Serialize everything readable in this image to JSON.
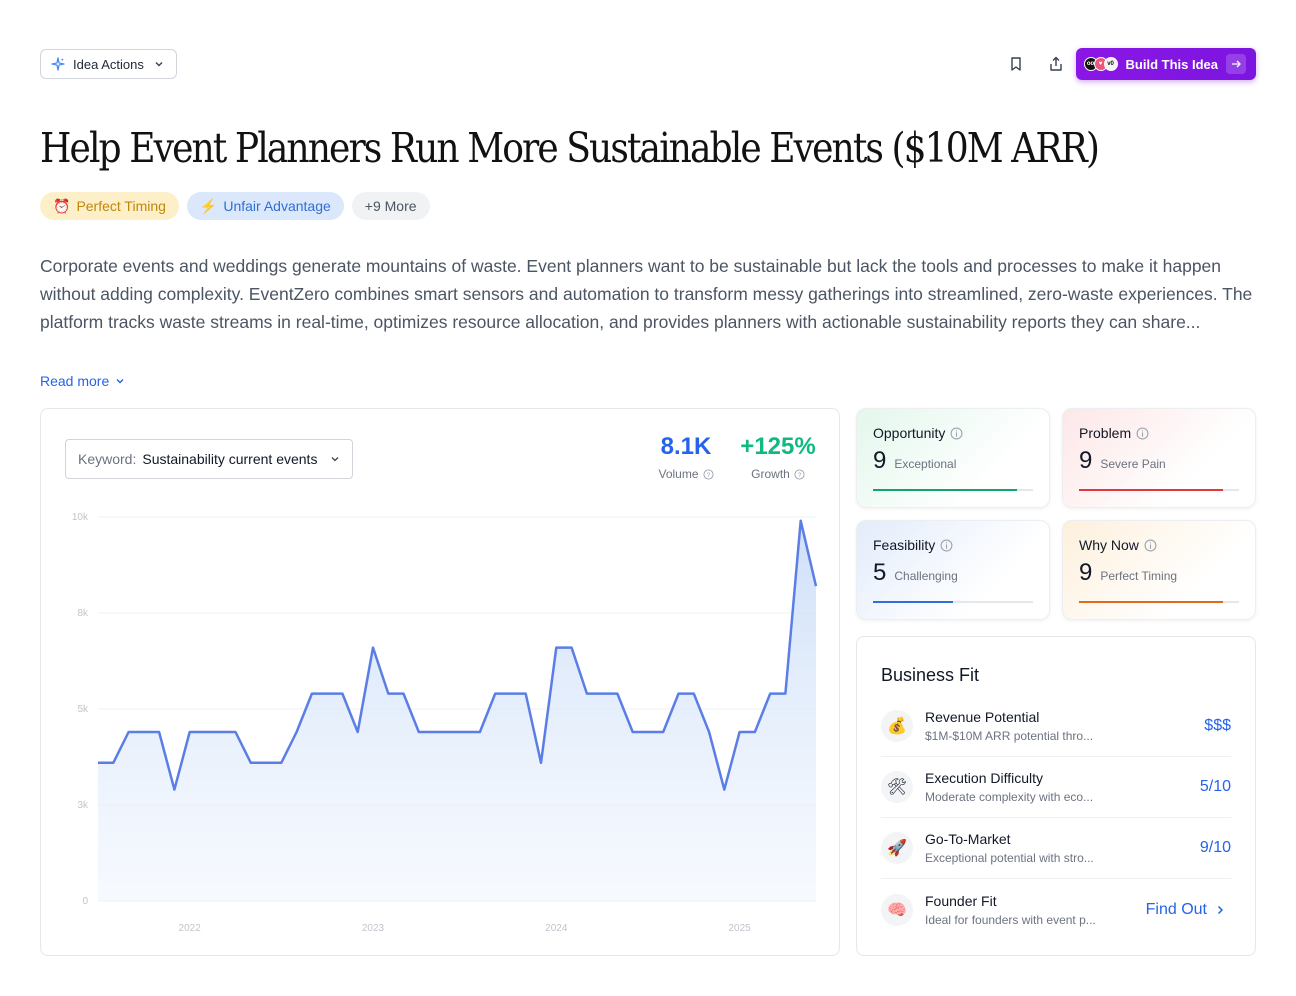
{
  "toolbar": {
    "idea_actions_label": "Idea Actions",
    "build_label": "Build This Idea",
    "logos": [
      "logo-a",
      "logo-b",
      "logo-c"
    ]
  },
  "title": "Help Event Planners Run More Sustainable Events ($10M ARR)",
  "tags": [
    {
      "icon": "alarm-clock-icon",
      "glyph": "⏰",
      "label": "Perfect Timing"
    },
    {
      "icon": "lightning-icon",
      "glyph": "⚡",
      "label": "Unfair Advantage"
    },
    {
      "label": "+9 More"
    }
  ],
  "description": "Corporate events and weddings generate mountains of waste. Event planners want to be sustainable but lack the tools and processes to make it happen without adding complexity. EventZero combines smart sensors and automation to transform messy gatherings into streamlined, zero-waste experiences. The platform tracks waste streams in real-time, optimizes resource allocation, and provides planners with actionable sustainability reports they can share...",
  "read_more": "Read more",
  "keyword": {
    "label": "Keyword:",
    "value": "Sustainability current events"
  },
  "metrics": {
    "volume": {
      "value": "8.1K",
      "label": "Volume"
    },
    "growth": {
      "value": "+125%",
      "label": "Growth"
    }
  },
  "chart_data": {
    "type": "area",
    "title": "",
    "xlabel": "",
    "ylabel": "",
    "ylim": [
      0,
      10000
    ],
    "yticks": [
      {
        "v": 0,
        "label": "0"
      },
      {
        "v": 2500,
        "label": "3k"
      },
      {
        "v": 5000,
        "label": "5k"
      },
      {
        "v": 7500,
        "label": "8k"
      },
      {
        "v": 10000,
        "label": "10k"
      }
    ],
    "xticks": [
      {
        "i": 6,
        "label": "2022"
      },
      {
        "i": 18,
        "label": "2023"
      },
      {
        "i": 30,
        "label": "2024"
      },
      {
        "i": 42,
        "label": "2025"
      }
    ],
    "accent": "#5b7ee6",
    "values": [
      3600,
      3600,
      4400,
      4400,
      4400,
      2900,
      4400,
      4400,
      4400,
      4400,
      3600,
      3600,
      3600,
      4400,
      5400,
      5400,
      5400,
      4400,
      6600,
      5400,
      5400,
      4400,
      4400,
      4400,
      4400,
      4400,
      5400,
      5400,
      5400,
      3600,
      6600,
      6600,
      5400,
      5400,
      5400,
      4400,
      4400,
      4400,
      5400,
      5400,
      4400,
      2900,
      4400,
      4400,
      5400,
      5400,
      9900,
      8200
    ]
  },
  "scores": {
    "opportunity": {
      "title": "Opportunity",
      "value": "9",
      "word": "Exceptional",
      "fill": 0.9,
      "color": "#10a56a"
    },
    "problem": {
      "title": "Problem",
      "value": "9",
      "word": "Severe Pain",
      "fill": 0.9,
      "color": "#e0383e"
    },
    "feasibility": {
      "title": "Feasibility",
      "value": "5",
      "word": "Challenging",
      "fill": 0.5,
      "color": "#2f6fd6"
    },
    "why_now": {
      "title": "Why Now",
      "value": "9",
      "word": "Perfect Timing",
      "fill": 0.9,
      "color": "#e06a1b"
    }
  },
  "business_fit": {
    "title": "Business Fit",
    "rows": [
      {
        "icon": "money-bag-icon",
        "glyph": "💰",
        "name": "Revenue Potential",
        "sub": "$1M-$10M ARR potential thro...",
        "value": "$$$"
      },
      {
        "icon": "tools-icon",
        "glyph": "🛠",
        "name": "Execution Difficulty",
        "sub": "Moderate complexity with eco...",
        "value": "5/10"
      },
      {
        "icon": "rocket-icon",
        "glyph": "🚀",
        "name": "Go-To-Market",
        "sub": "Exceptional potential with stro...",
        "value": "9/10"
      },
      {
        "icon": "brain-icon",
        "glyph": "🧠",
        "name": "Founder Fit",
        "sub": "Ideal for founders with event p...",
        "value": "Find Out"
      }
    ]
  }
}
